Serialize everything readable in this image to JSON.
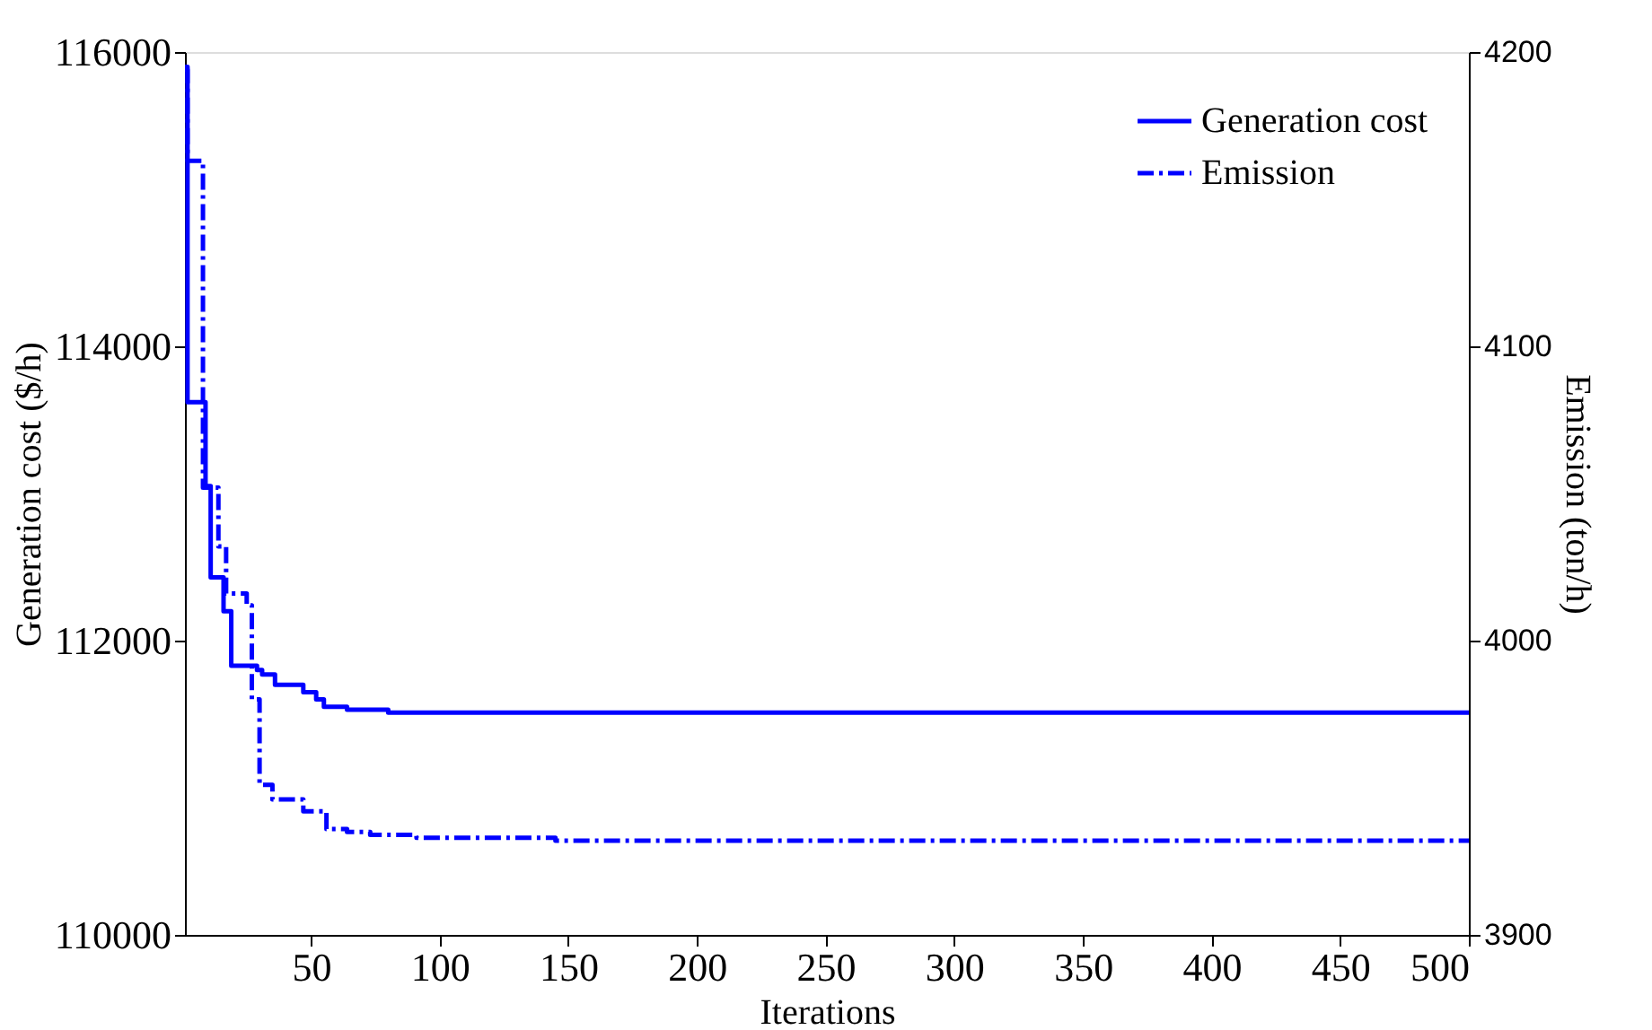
{
  "chart_data": {
    "type": "step",
    "xlabel": "Iterations",
    "ylabel": "Generation cost ($/h)",
    "y2label": "Emission (ton/h)",
    "xlim": [
      1,
      500
    ],
    "xticks": [
      50,
      100,
      150,
      200,
      250,
      300,
      350,
      400,
      450,
      500
    ],
    "ylim": [
      110000,
      116000
    ],
    "yticks": [
      110000,
      112000,
      114000,
      116000
    ],
    "y2lim": [
      3900,
      4200
    ],
    "y2ticks": [
      3900,
      4000,
      4100,
      4200
    ],
    "grid": false,
    "legend": "top right",
    "marker": "none",
    "series": [
      {
        "name": "Generation cost",
        "color": "#0000ff",
        "line_style": "solid",
        "x": [
          1,
          2,
          9,
          11,
          16,
          19,
          29,
          31,
          36,
          47,
          52,
          55,
          64,
          80,
          500
        ],
        "values": [
          115900,
          113620,
          113050,
          112430,
          112200,
          111830,
          111800,
          111770,
          111700,
          111650,
          111600,
          111550,
          111530,
          111510,
          111510
        ]
      },
      {
        "name": "Emission",
        "color": "#0000ff",
        "line_style": "dashed",
        "axis": "y2",
        "x": [
          1,
          2,
          8,
          14,
          17,
          25,
          27,
          30,
          35,
          47,
          56,
          64,
          73,
          91,
          145,
          500
        ],
        "values": [
          4194,
          4163,
          4052,
          4032,
          4016,
          4012,
          3980,
          3951,
          3946,
          3942,
          3936,
          3935,
          3934,
          3933,
          3932,
          3932
        ]
      }
    ]
  }
}
